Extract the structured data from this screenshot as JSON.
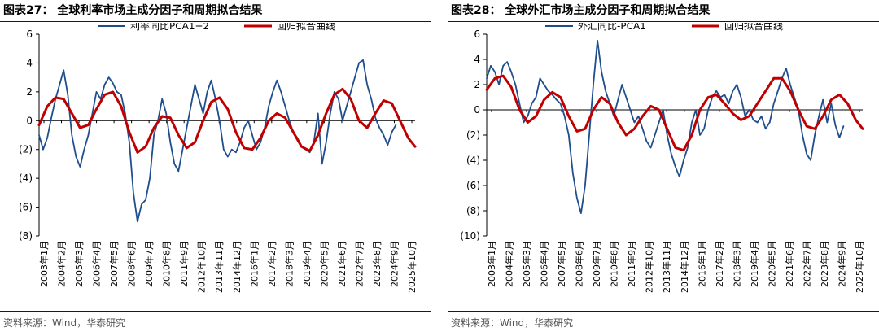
{
  "panels": [
    {
      "fig_title": "图表27：  全球利率市场主成分因子和周期拟合结果",
      "source": "资料来源：Wind，华泰研究",
      "chart_data": {
        "type": "line",
        "y_ticks": [
          "6",
          "4",
          "2",
          "0",
          "(2)",
          "(4)",
          "(6)",
          "(8)"
        ],
        "y_tick_values": [
          6,
          4,
          2,
          0,
          -2,
          -4,
          -6,
          -8
        ],
        "ylim": [
          -8,
          6
        ],
        "x_range": [
          2003.0,
          2025.92
        ],
        "x_ticks": [
          "2003年1月",
          "2004年2月",
          "2005年3月",
          "2006年4月",
          "2007年5月",
          "2008年6月",
          "2009年7月",
          "2010年8月",
          "2011年9月",
          "2012年10月",
          "2013年11月",
          "2014年12月",
          "2016年1月",
          "2017年2月",
          "2018年3月",
          "2019年4月",
          "2020年5月",
          "2021年6月",
          "2022年7月",
          "2023年8月",
          "2024年9月",
          "2025年10月"
        ],
        "legend_location": "top",
        "series": [
          {
            "name": "利率同比PCA1+2",
            "color": "#1f4e8c",
            "x": [
              2003.0,
              2003.25,
              2003.5,
              2003.75,
              2004.0,
              2004.25,
              2004.5,
              2004.75,
              2005.0,
              2005.25,
              2005.5,
              2005.75,
              2006.0,
              2006.25,
              2006.5,
              2006.75,
              2007.0,
              2007.25,
              2007.5,
              2007.75,
              2008.0,
              2008.25,
              2008.5,
              2008.75,
              2009.0,
              2009.25,
              2009.5,
              2009.75,
              2010.0,
              2010.25,
              2010.5,
              2010.75,
              2011.0,
              2011.25,
              2011.5,
              2011.75,
              2012.0,
              2012.25,
              2012.5,
              2012.75,
              2013.0,
              2013.25,
              2013.5,
              2013.75,
              2014.0,
              2014.25,
              2014.5,
              2014.75,
              2015.0,
              2015.25,
              2015.5,
              2015.75,
              2016.0,
              2016.25,
              2016.5,
              2016.75,
              2017.0,
              2017.25,
              2017.5,
              2017.75,
              2018.0,
              2018.25,
              2018.5,
              2018.75,
              2019.0,
              2019.25,
              2019.5,
              2019.75,
              2020.0,
              2020.25,
              2020.5,
              2020.75,
              2021.0,
              2021.25,
              2021.5,
              2021.75,
              2022.0,
              2022.25,
              2022.5,
              2022.75,
              2023.0,
              2023.25,
              2023.5,
              2023.75,
              2024.0,
              2024.25,
              2024.5,
              2024.75
            ],
            "y": [
              -1.0,
              -2.0,
              -1.2,
              0.2,
              1.5,
              2.5,
              3.5,
              1.8,
              -1.0,
              -2.5,
              -3.2,
              -2.0,
              -1.0,
              0.5,
              2.0,
              1.5,
              2.5,
              3.0,
              2.6,
              2.0,
              1.8,
              0.5,
              -1.5,
              -5.0,
              -7.0,
              -5.8,
              -5.5,
              -4.0,
              -1.0,
              0.0,
              1.5,
              0.5,
              -1.5,
              -3.0,
              -3.5,
              -2.0,
              -0.5,
              1.0,
              2.5,
              1.5,
              0.5,
              2.0,
              2.8,
              1.5,
              0.0,
              -2.0,
              -2.5,
              -2.0,
              -2.2,
              -1.5,
              -0.5,
              0.0,
              -1.0,
              -2.0,
              -1.5,
              -0.5,
              1.0,
              2.0,
              2.8,
              2.0,
              1.0,
              0.0,
              -0.8,
              -1.2,
              -1.8,
              -2.0,
              -2.2,
              -1.5,
              0.5,
              -3.0,
              -1.5,
              0.5,
              2.0,
              1.5,
              0.0,
              1.0,
              2.0,
              3.0,
              4.0,
              4.2,
              2.5,
              1.5,
              0.2,
              -0.5,
              -1.0,
              -1.7,
              -0.8,
              -0.3
            ]
          },
          {
            "name": "回归拟合曲线",
            "color": "#c00000",
            "x": [
              2003.0,
              2003.5,
              2004.0,
              2004.5,
              2005.0,
              2005.5,
              2006.0,
              2006.5,
              2007.0,
              2007.5,
              2008.0,
              2008.5,
              2009.0,
              2009.5,
              2010.0,
              2010.5,
              2011.0,
              2011.5,
              2012.0,
              2012.5,
              2013.0,
              2013.5,
              2014.0,
              2014.5,
              2015.0,
              2015.5,
              2016.0,
              2016.5,
              2017.0,
              2017.5,
              2018.0,
              2018.5,
              2019.0,
              2019.5,
              2020.0,
              2020.5,
              2021.0,
              2021.5,
              2022.0,
              2022.5,
              2023.0,
              2023.5,
              2024.0,
              2024.5,
              2025.0,
              2025.5,
              2025.92
            ],
            "y": [
              -0.3,
              1.0,
              1.6,
              1.5,
              0.5,
              -0.5,
              -0.3,
              0.8,
              1.8,
              2.0,
              1.0,
              -0.8,
              -2.2,
              -1.8,
              -0.5,
              0.3,
              0.2,
              -1.0,
              -1.9,
              -1.5,
              0.0,
              1.3,
              1.6,
              0.8,
              -0.8,
              -1.9,
              -2.0,
              -1.2,
              0.0,
              0.5,
              0.2,
              -0.8,
              -1.8,
              -2.1,
              -1.0,
              0.5,
              1.8,
              2.2,
              1.5,
              0.0,
              -0.5,
              0.5,
              1.4,
              1.2,
              0.0,
              -1.2,
              -1.8
            ]
          }
        ]
      }
    },
    {
      "fig_title": "图表28：  全球外汇市场主成分因子和周期拟合结果",
      "source": "资料来源：Wind，华泰研究",
      "chart_data": {
        "type": "line",
        "y_ticks": [
          "6",
          "4",
          "2",
          "0",
          "(2)",
          "(4)",
          "(6)",
          "(8)",
          "(10)"
        ],
        "y_tick_values": [
          6,
          4,
          2,
          0,
          -2,
          -4,
          -6,
          -8,
          -10
        ],
        "ylim": [
          -10,
          6
        ],
        "x_range": [
          2003.0,
          2025.92
        ],
        "x_ticks": [
          "2003年1月",
          "2004年2月",
          "2005年3月",
          "2006年4月",
          "2007年5月",
          "2008年6月",
          "2009年7月",
          "2010年8月",
          "2011年9月",
          "2012年10月",
          "2013年11月",
          "2014年12月",
          "2016年1月",
          "2017年2月",
          "2018年3月",
          "2019年4月",
          "2020年5月",
          "2021年6月",
          "2022年7月",
          "2023年8月",
          "2024年9月",
          "2025年10月"
        ],
        "legend_location": "top",
        "series": [
          {
            "name": "外汇同比-PCA1",
            "color": "#1f4e8c",
            "x": [
              2003.0,
              2003.25,
              2003.5,
              2003.75,
              2004.0,
              2004.25,
              2004.5,
              2004.75,
              2005.0,
              2005.25,
              2005.5,
              2005.75,
              2006.0,
              2006.25,
              2006.5,
              2006.75,
              2007.0,
              2007.25,
              2007.5,
              2007.75,
              2008.0,
              2008.25,
              2008.5,
              2008.75,
              2009.0,
              2009.25,
              2009.5,
              2009.75,
              2010.0,
              2010.25,
              2010.5,
              2010.75,
              2011.0,
              2011.25,
              2011.5,
              2011.75,
              2012.0,
              2012.25,
              2012.5,
              2012.75,
              2013.0,
              2013.25,
              2013.5,
              2013.75,
              2014.0,
              2014.25,
              2014.5,
              2014.75,
              2015.0,
              2015.25,
              2015.5,
              2015.75,
              2016.0,
              2016.25,
              2016.5,
              2016.75,
              2017.0,
              2017.25,
              2017.5,
              2017.75,
              2018.0,
              2018.25,
              2018.5,
              2018.75,
              2019.0,
              2019.25,
              2019.5,
              2019.75,
              2020.0,
              2020.25,
              2020.5,
              2020.75,
              2021.0,
              2021.25,
              2021.5,
              2021.75,
              2022.0,
              2022.25,
              2022.5,
              2022.75,
              2023.0,
              2023.25,
              2023.5,
              2023.75,
              2024.0,
              2024.25,
              2024.5,
              2024.75
            ],
            "y": [
              2.5,
              3.5,
              3.0,
              2.0,
              3.5,
              3.8,
              3.0,
              2.0,
              0.5,
              -1.0,
              -0.5,
              0.5,
              1.0,
              2.5,
              2.0,
              1.5,
              1.2,
              0.8,
              0.5,
              -0.5,
              -2.0,
              -5.0,
              -7.0,
              -8.2,
              -6.0,
              -2.0,
              2.0,
              5.5,
              3.0,
              1.5,
              0.5,
              -0.5,
              0.8,
              2.0,
              1.0,
              0.0,
              -1.0,
              -0.5,
              -1.5,
              -2.5,
              -3.0,
              -2.0,
              -1.0,
              0.0,
              -2.0,
              -3.5,
              -4.5,
              -5.3,
              -4.0,
              -3.0,
              -1.0,
              0.0,
              -2.0,
              -1.5,
              0.0,
              1.0,
              1.5,
              1.0,
              1.2,
              0.5,
              1.5,
              2.0,
              1.0,
              -0.5,
              0.0,
              -0.8,
              -1.0,
              -0.5,
              -1.5,
              -1.0,
              0.5,
              1.5,
              2.5,
              3.3,
              2.0,
              1.0,
              0.0,
              -2.0,
              -3.5,
              -4.0,
              -2.0,
              -0.5,
              0.8,
              -1.0,
              0.5,
              -1.2,
              -2.2,
              -1.3
            ]
          },
          {
            "name": "回归拟合曲线",
            "color": "#c00000",
            "x": [
              2003.0,
              2003.5,
              2004.0,
              2004.5,
              2005.0,
              2005.5,
              2006.0,
              2006.5,
              2007.0,
              2007.5,
              2008.0,
              2008.5,
              2009.0,
              2009.5,
              2010.0,
              2010.5,
              2011.0,
              2011.5,
              2012.0,
              2012.5,
              2013.0,
              2013.5,
              2014.0,
              2014.5,
              2015.0,
              2015.5,
              2016.0,
              2016.5,
              2017.0,
              2017.5,
              2018.0,
              2018.5,
              2019.0,
              2019.5,
              2020.0,
              2020.5,
              2021.0,
              2021.5,
              2022.0,
              2022.5,
              2023.0,
              2023.5,
              2024.0,
              2024.5,
              2025.0,
              2025.5,
              2025.92
            ],
            "y": [
              1.6,
              2.5,
              2.7,
              1.8,
              0.0,
              -1.0,
              -0.5,
              0.8,
              1.4,
              1.0,
              -0.5,
              -1.7,
              -1.5,
              0.0,
              1.0,
              0.5,
              -1.0,
              -2.0,
              -1.5,
              -0.5,
              0.3,
              0.0,
              -1.5,
              -3.0,
              -3.2,
              -2.0,
              0.0,
              1.0,
              1.2,
              0.5,
              -0.3,
              -0.8,
              -0.5,
              0.5,
              1.5,
              2.5,
              2.5,
              1.5,
              0.0,
              -1.3,
              -1.5,
              -0.5,
              0.8,
              1.2,
              0.5,
              -0.8,
              -1.5
            ]
          }
        ]
      }
    }
  ]
}
